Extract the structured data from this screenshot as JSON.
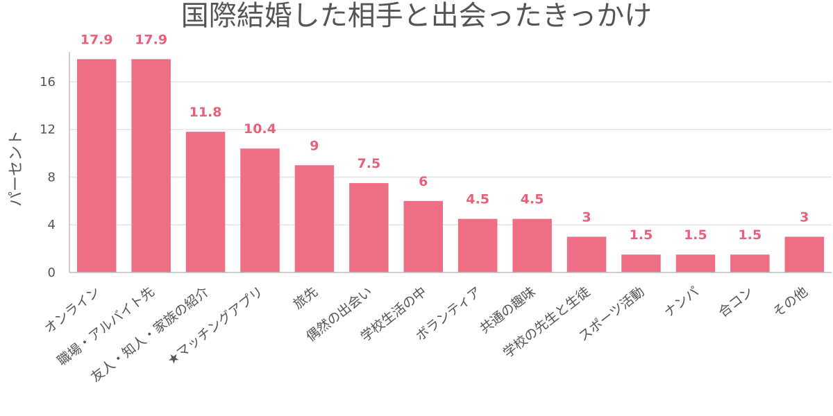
{
  "chart_data": {
    "type": "bar",
    "title": "国際結婚した相手と出会ったきっかけ",
    "xlabel": "",
    "ylabel": "パーセント",
    "categories": [
      "オンライン",
      "職場・アルバイト先",
      "友人・知人・家族の紹介",
      "★マッチングアプリ",
      "旅先",
      "偶然の出会い",
      "学校生活の中",
      "ボランティア",
      "共通の趣味",
      "学校の先生と生徒",
      "スポーツ活動",
      "ナンパ",
      "合コン",
      "その他"
    ],
    "values": [
      17.9,
      17.9,
      11.8,
      10.4,
      9,
      7.5,
      6,
      4.5,
      4.5,
      3,
      1.5,
      1.5,
      1.5,
      3
    ],
    "data_labels": [
      "17.9",
      "17.9",
      "11.8",
      "10.4",
      "9",
      "7.5",
      "6",
      "4.5",
      "4.5",
      "3",
      "1.5",
      "1.5",
      "1.5",
      "3"
    ],
    "yticks": [
      0,
      4,
      8,
      12,
      16
    ],
    "ylim": [
      0,
      18.5
    ],
    "grid": true,
    "legend": "none",
    "bar_color": "#ee6e85",
    "label_color": "#e8607a"
  }
}
